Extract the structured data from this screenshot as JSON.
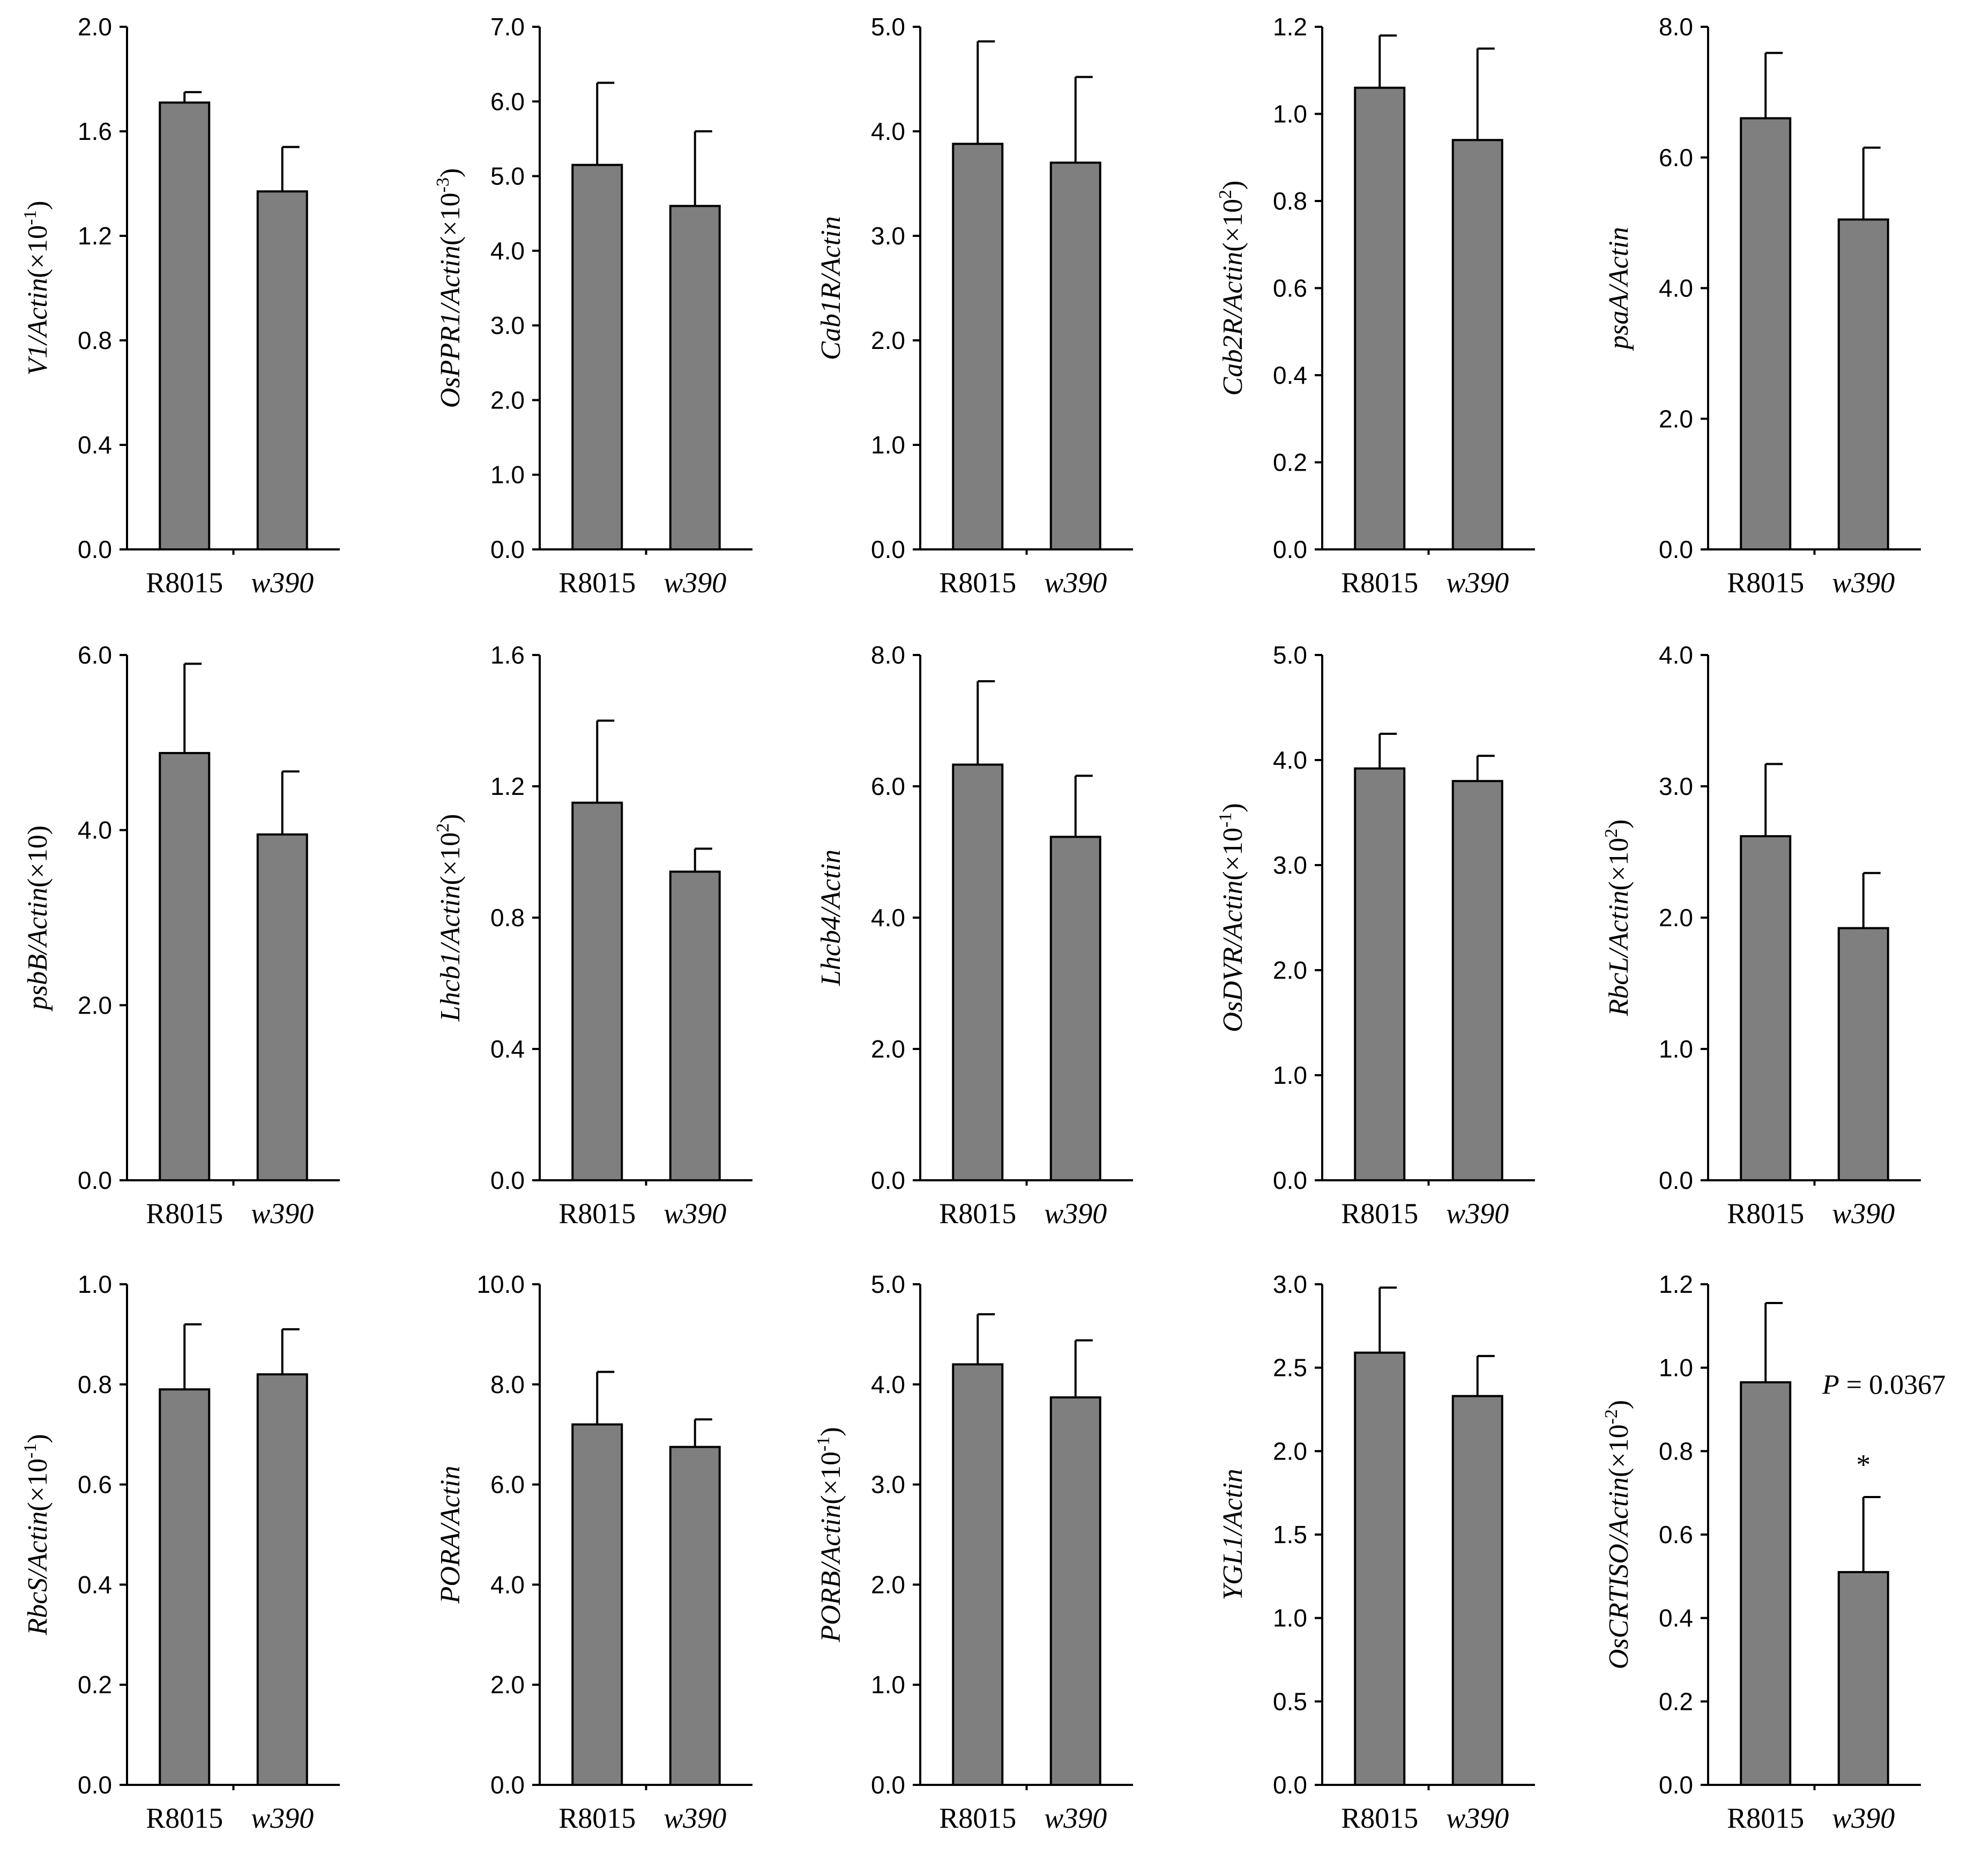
{
  "chart_data": [
    {
      "type": "bar",
      "categories": [
        "R8015",
        "w390"
      ],
      "category_italic": [
        false,
        true
      ],
      "values": [
        1.71,
        1.37
      ],
      "errors": [
        0.04,
        0.17
      ],
      "ylabel": {
        "gene": "V1/Actin",
        "suffix": "(×10",
        "exp": "-1",
        "close": ")"
      },
      "yticks": [
        "0.0",
        "0.4",
        "0.8",
        "1.2",
        "1.6",
        "2.0"
      ],
      "ylim": [
        0,
        2.0
      ]
    },
    {
      "type": "bar",
      "categories": [
        "R8015",
        "w390"
      ],
      "category_italic": [
        false,
        true
      ],
      "values": [
        5.15,
        4.6
      ],
      "errors": [
        1.1,
        1.0
      ],
      "ylabel": {
        "gene": "OsPPR1/Actin",
        "suffix": "(×10",
        "exp": "-3",
        "close": ")"
      },
      "yticks": [
        "0.0",
        "1.0",
        "2.0",
        "3.0",
        "4.0",
        "5.0",
        "6.0",
        "7.0"
      ],
      "ylim": [
        0,
        7.0
      ]
    },
    {
      "type": "bar",
      "categories": [
        "R8015",
        "w390"
      ],
      "category_italic": [
        false,
        true
      ],
      "values": [
        3.88,
        3.7
      ],
      "errors": [
        0.98,
        0.82
      ],
      "ylabel": {
        "gene": "Cab1R/Actin",
        "suffix": "",
        "exp": "",
        "close": ""
      },
      "yticks": [
        "0.0",
        "1.0",
        "2.0",
        "3.0",
        "4.0",
        "5.0"
      ],
      "ylim": [
        0,
        5.0
      ]
    },
    {
      "type": "bar",
      "categories": [
        "R8015",
        "w390"
      ],
      "category_italic": [
        false,
        true
      ],
      "values": [
        1.06,
        0.94
      ],
      "errors": [
        0.12,
        0.21
      ],
      "ylabel": {
        "gene": "Cab2R/Actin",
        "suffix": "(×10",
        "exp": "2",
        "close": ")"
      },
      "yticks": [
        "0.0",
        "0.2",
        "0.4",
        "0.6",
        "0.8",
        "1.0",
        "1.2"
      ],
      "ylim": [
        0,
        1.2
      ]
    },
    {
      "type": "bar",
      "categories": [
        "R8015",
        "w390"
      ],
      "category_italic": [
        false,
        true
      ],
      "values": [
        6.6,
        5.05
      ],
      "errors": [
        1.0,
        1.1
      ],
      "ylabel": {
        "gene": "psaA/Actin",
        "suffix": "",
        "exp": "",
        "close": ""
      },
      "yticks": [
        "0.0",
        "2.0",
        "4.0",
        "6.0",
        "8.0"
      ],
      "ylim": [
        0,
        8.0
      ]
    },
    {
      "type": "bar",
      "categories": [
        "R8015",
        "w390"
      ],
      "category_italic": [
        false,
        true
      ],
      "values": [
        4.88,
        3.95
      ],
      "errors": [
        1.02,
        0.72
      ],
      "ylabel": {
        "gene": "psbB/Actin",
        "suffix": "(×10)",
        "exp": "",
        "close": ""
      },
      "yticks": [
        "0.0",
        "2.0",
        "4.0",
        "6.0"
      ],
      "ylim": [
        0,
        6.0
      ]
    },
    {
      "type": "bar",
      "categories": [
        "R8015",
        "w390"
      ],
      "category_italic": [
        false,
        true
      ],
      "values": [
        1.15,
        0.94
      ],
      "errors": [
        0.25,
        0.07
      ],
      "ylabel": {
        "gene": "Lhcb1/Actin",
        "suffix": "(×10",
        "exp": "2",
        "close": ")"
      },
      "yticks": [
        "0.0",
        "0.4",
        "0.8",
        "1.2",
        "1.6"
      ],
      "ylim": [
        0,
        1.6
      ]
    },
    {
      "type": "bar",
      "categories": [
        "R8015",
        "w390"
      ],
      "category_italic": [
        false,
        true
      ],
      "values": [
        6.33,
        5.23
      ],
      "errors": [
        1.27,
        0.93
      ],
      "ylabel": {
        "gene": "Lhcb4/Actin",
        "suffix": "",
        "exp": "",
        "close": ""
      },
      "yticks": [
        "0.0",
        "2.0",
        "4.0",
        "6.0",
        "8.0"
      ],
      "ylim": [
        0,
        8.0
      ]
    },
    {
      "type": "bar",
      "categories": [
        "R8015",
        "w390"
      ],
      "category_italic": [
        false,
        true
      ],
      "values": [
        3.92,
        3.8
      ],
      "errors": [
        0.33,
        0.24
      ],
      "ylabel": {
        "gene": "OsDVR/Actin",
        "suffix": "(×10",
        "exp": "-1",
        "close": ")"
      },
      "yticks": [
        "0.0",
        "1.0",
        "2.0",
        "3.0",
        "4.0",
        "5.0"
      ],
      "ylim": [
        0,
        5.0
      ]
    },
    {
      "type": "bar",
      "categories": [
        "R8015",
        "w390"
      ],
      "category_italic": [
        false,
        true
      ],
      "values": [
        2.62,
        1.92
      ],
      "errors": [
        0.55,
        0.42
      ],
      "ylabel": {
        "gene": "RbcL/Actin",
        "suffix": "(×10",
        "exp": "2",
        "close": ")"
      },
      "yticks": [
        "0.0",
        "1.0",
        "2.0",
        "3.0",
        "4.0"
      ],
      "ylim": [
        0,
        4.0
      ]
    },
    {
      "type": "bar",
      "categories": [
        "R8015",
        "w390"
      ],
      "category_italic": [
        false,
        true
      ],
      "values": [
        0.79,
        0.82
      ],
      "errors": [
        0.13,
        0.09
      ],
      "ylabel": {
        "gene": "RbcS/Actin",
        "suffix": "(×10",
        "exp": "-1",
        "close": ")"
      },
      "yticks": [
        "0.0",
        "0.2",
        "0.4",
        "0.6",
        "0.8",
        "1.0"
      ],
      "ylim": [
        0,
        1.0
      ]
    },
    {
      "type": "bar",
      "categories": [
        "R8015",
        "w390"
      ],
      "category_italic": [
        false,
        true
      ],
      "values": [
        7.2,
        6.75
      ],
      "errors": [
        1.05,
        0.55
      ],
      "ylabel": {
        "gene": "PORA/Actin",
        "suffix": "",
        "exp": "",
        "close": ""
      },
      "yticks": [
        "0.0",
        "2.0",
        "4.0",
        "6.0",
        "8.0",
        "10.0"
      ],
      "ylim": [
        0,
        10.0
      ]
    },
    {
      "type": "bar",
      "categories": [
        "R8015",
        "w390"
      ],
      "category_italic": [
        false,
        true
      ],
      "values": [
        4.2,
        3.87
      ],
      "errors": [
        0.5,
        0.57
      ],
      "ylabel": {
        "gene": "PORB/Actin",
        "suffix": "(×10",
        "exp": "-1",
        "close": ")"
      },
      "yticks": [
        "0.0",
        "1.0",
        "2.0",
        "3.0",
        "4.0",
        "5.0"
      ],
      "ylim": [
        0,
        5.0
      ]
    },
    {
      "type": "bar",
      "categories": [
        "R8015",
        "w390"
      ],
      "category_italic": [
        false,
        true
      ],
      "values": [
        2.59,
        2.33
      ],
      "errors": [
        0.39,
        0.24
      ],
      "ylabel": {
        "gene": "YGL1/Actin",
        "suffix": "",
        "exp": "",
        "close": ""
      },
      "yticks": [
        "0.0",
        "0.5",
        "1.0",
        "1.5",
        "2.0",
        "2.5",
        "3.0"
      ],
      "ylim": [
        0,
        3.0
      ]
    },
    {
      "type": "bar",
      "categories": [
        "R8015",
        "w390"
      ],
      "category_italic": [
        false,
        true
      ],
      "values": [
        0.965,
        0.51
      ],
      "errors": [
        0.19,
        0.18
      ],
      "ylabel": {
        "gene": "OsCRTISO/Actin",
        "suffix": "(×10",
        "exp": "-2",
        "close": ")"
      },
      "yticks": [
        "0.0",
        "0.2",
        "0.4",
        "0.6",
        "0.8",
        "1.0",
        "1.2"
      ],
      "ylim": [
        0,
        1.2
      ],
      "annotation": {
        "p_label": "P",
        "p_rest": " = 0.0367",
        "mark": "*"
      }
    }
  ]
}
